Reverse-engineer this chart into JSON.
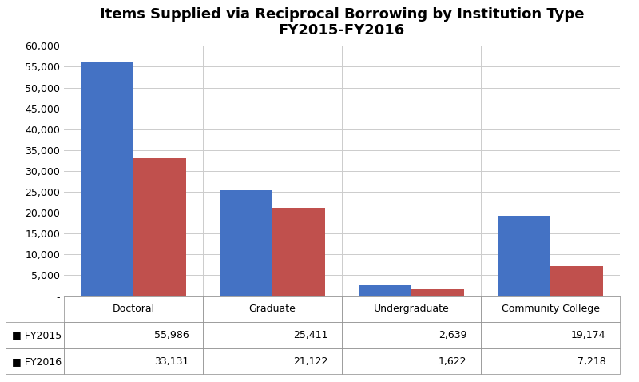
{
  "title_line1": "Items Supplied via Reciprocal Borrowing by Institution Type",
  "title_line2": "FY2015-FY2016",
  "categories": [
    "Doctoral",
    "Graduate",
    "Undergraduate",
    "Community College"
  ],
  "fy2015_values": [
    55986,
    25411,
    2639,
    19174
  ],
  "fy2016_values": [
    33131,
    21122,
    1622,
    7218
  ],
  "fy2015_color": "#4472C4",
  "fy2016_color": "#C0504D",
  "ylim": [
    0,
    60000
  ],
  "yticks": [
    0,
    5000,
    10000,
    15000,
    20000,
    25000,
    30000,
    35000,
    40000,
    45000,
    50000,
    55000,
    60000
  ],
  "ytick_labels": [
    "-",
    "5,000",
    "10,000",
    "15,000",
    "20,000",
    "25,000",
    "30,000",
    "35,000",
    "40,000",
    "45,000",
    "50,000",
    "55,000",
    "60,000"
  ],
  "legend_labels": [
    "FY2015",
    "FY2016"
  ],
  "table_row1": [
    "55,986",
    "25,411",
    "2,639",
    "19,174"
  ],
  "table_row2": [
    "33,131",
    "21,122",
    "1,622",
    "7,218"
  ],
  "background_color": "#FFFFFF",
  "bar_width": 0.38,
  "title_fontsize": 13,
  "tick_fontsize": 9,
  "table_fontsize": 9
}
